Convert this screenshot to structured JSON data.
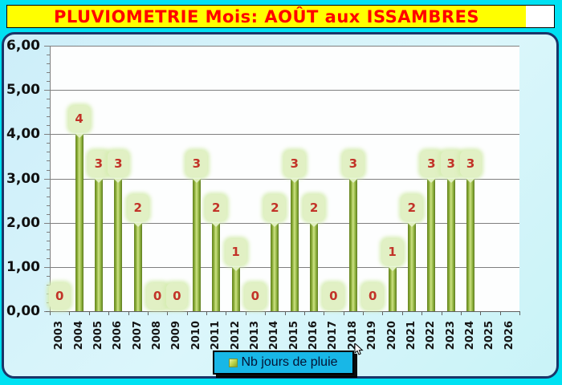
{
  "title": {
    "text": "PLUVIOMETRIE Mois: AOÛT aux ISSAMBRES"
  },
  "legend": {
    "label": "Nb jours de pluie",
    "marker_color": "#aec93e"
  },
  "colors": {
    "page_background": "#00e1f2",
    "title_background": "#ffff00",
    "title_text": "#ff0000",
    "chart_border": "#1b3569",
    "chart_background": "#d5f2fa",
    "plot_background": "#fdfefe",
    "gridline": "#7f7f7f",
    "bar_dark": "#64821f",
    "bar_light": "#cde284",
    "badge_background": "#e1f0c4",
    "badge_text": "#c23328",
    "legend_background": "#18b7e7"
  },
  "chart_data": {
    "type": "bar",
    "title": "PLUVIOMETRIE Mois: AOÛT aux ISSAMBRES",
    "series_name": "Nb jours de pluie",
    "categories": [
      "2003",
      "2004",
      "2005",
      "2006",
      "2007",
      "2008",
      "2009",
      "2010",
      "2011",
      "2012",
      "2013",
      "2014",
      "2015",
      "2016",
      "2017",
      "2018",
      "2019",
      "2020",
      "2021",
      "2022",
      "2023",
      "2024",
      "2025",
      "2026"
    ],
    "values": [
      0,
      4,
      3,
      3,
      2,
      0,
      0,
      3,
      2,
      1,
      0,
      2,
      3,
      2,
      0,
      3,
      0,
      1,
      2,
      3,
      3,
      3,
      null,
      null
    ],
    "xlabel": "",
    "ylabel": "",
    "ylim": [
      0,
      6
    ],
    "ytick_labels": [
      "6,00",
      "5,00",
      "4,00",
      "3,00",
      "2,00",
      "1,00",
      "0,00"
    ],
    "ytick_values": [
      6,
      5,
      4,
      3,
      2,
      1,
      0
    ],
    "minor_tick_step": 0.2,
    "grid": true,
    "legend_position": "bottom-center",
    "data_labels": true
  }
}
